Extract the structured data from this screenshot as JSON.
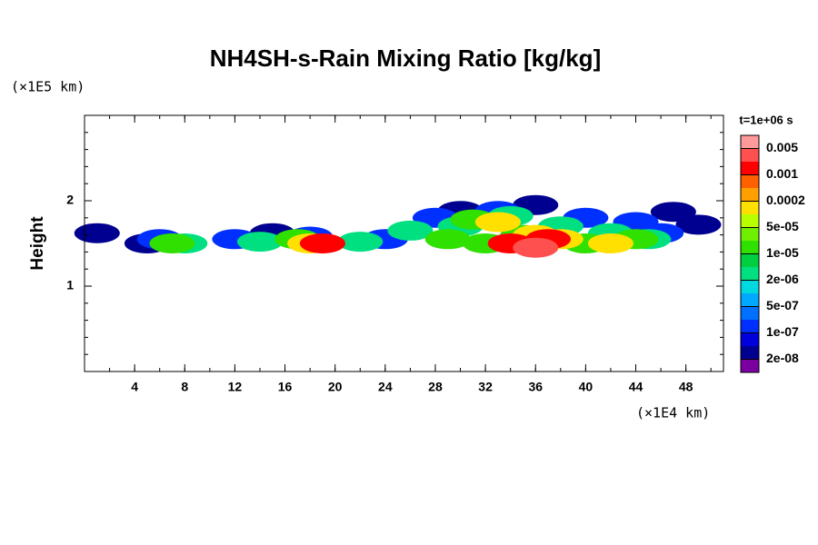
{
  "chart_data": {
    "type": "contour",
    "title": "NH4SH-s-Rain Mixing Ratio [kg/kg]",
    "y_label": "Height",
    "x_unit": "(×1E4 km)",
    "y_unit": "(×1E5 km)",
    "time_label": "t=1e+06 s",
    "xlim": [
      0,
      51
    ],
    "xticks": [
      4,
      8,
      12,
      16,
      20,
      24,
      28,
      32,
      36,
      40,
      44,
      48
    ],
    "ylim": [
      0,
      3
    ],
    "yticks": [
      1,
      2
    ],
    "levels": [
      {
        "value": 2e-08,
        "label": "2e-08"
      },
      {
        "value": 1e-07,
        "label": "1e-07"
      },
      {
        "value": 5e-07,
        "label": "5e-07"
      },
      {
        "value": 2e-06,
        "label": "2e-06"
      },
      {
        "value": 1e-05,
        "label": "1e-05"
      },
      {
        "value": 5e-05,
        "label": "5e-05"
      },
      {
        "value": 0.0002,
        "label": "0.0002"
      },
      {
        "value": 0.001,
        "label": "0.001"
      },
      {
        "value": 0.005,
        "label": "0.005"
      }
    ],
    "colors": [
      "#7a00a0",
      "#000090",
      "#0000dd",
      "#0030ff",
      "#0070ff",
      "#00a8ff",
      "#00d8e0",
      "#00e080",
      "#00d040",
      "#30e000",
      "#70f000",
      "#b8ff00",
      "#ffe000",
      "#ffa000",
      "#ff6000",
      "#ff0000",
      "#ff5050",
      "#ff9a9a"
    ],
    "samples": [
      {
        "x": 1,
        "y": 1.62,
        "value": 3e-08
      },
      {
        "x": 15,
        "y": 1.62,
        "value": 3e-08
      },
      {
        "x": 49,
        "y": 1.72,
        "value": 3e-08
      },
      {
        "x": 47,
        "y": 1.87,
        "value": 3e-08
      },
      {
        "x": 30,
        "y": 1.88,
        "value": 3e-08
      },
      {
        "x": 36,
        "y": 1.95,
        "value": 3e-08
      },
      {
        "x": 5,
        "y": 1.5,
        "value": 3e-08
      },
      {
        "x": 6,
        "y": 1.55,
        "value": 2e-07
      },
      {
        "x": 12,
        "y": 1.55,
        "value": 2e-07
      },
      {
        "x": 18,
        "y": 1.58,
        "value": 2e-07
      },
      {
        "x": 24,
        "y": 1.55,
        "value": 2e-07
      },
      {
        "x": 28,
        "y": 1.8,
        "value": 2e-07
      },
      {
        "x": 33,
        "y": 1.88,
        "value": 2e-07
      },
      {
        "x": 40,
        "y": 1.8,
        "value": 2e-07
      },
      {
        "x": 44,
        "y": 1.75,
        "value": 2e-07
      },
      {
        "x": 46,
        "y": 1.62,
        "value": 2e-07
      },
      {
        "x": 8,
        "y": 1.5,
        "value": 3e-06
      },
      {
        "x": 14,
        "y": 1.52,
        "value": 3e-06
      },
      {
        "x": 22,
        "y": 1.52,
        "value": 3e-06
      },
      {
        "x": 26,
        "y": 1.65,
        "value": 3e-06
      },
      {
        "x": 30,
        "y": 1.7,
        "value": 3e-06
      },
      {
        "x": 34,
        "y": 1.82,
        "value": 3e-06
      },
      {
        "x": 38,
        "y": 1.7,
        "value": 3e-06
      },
      {
        "x": 42,
        "y": 1.62,
        "value": 3e-06
      },
      {
        "x": 45,
        "y": 1.55,
        "value": 3e-06
      },
      {
        "x": 7,
        "y": 1.5,
        "value": 2e-05
      },
      {
        "x": 17,
        "y": 1.55,
        "value": 2e-05
      },
      {
        "x": 29,
        "y": 1.55,
        "value": 2e-05
      },
      {
        "x": 32,
        "y": 1.5,
        "value": 2e-05
      },
      {
        "x": 35,
        "y": 1.6,
        "value": 2e-05
      },
      {
        "x": 40,
        "y": 1.5,
        "value": 2e-05
      },
      {
        "x": 44,
        "y": 1.55,
        "value": 2e-05
      },
      {
        "x": 31,
        "y": 1.78,
        "value": 2e-05
      },
      {
        "x": 18,
        "y": 1.5,
        "value": 0.0001
      },
      {
        "x": 33,
        "y": 1.75,
        "value": 0.0001
      },
      {
        "x": 36,
        "y": 1.6,
        "value": 0.0001
      },
      {
        "x": 38,
        "y": 1.55,
        "value": 0.0001
      },
      {
        "x": 42,
        "y": 1.5,
        "value": 0.0001
      },
      {
        "x": 19,
        "y": 1.5,
        "value": 0.001
      },
      {
        "x": 34,
        "y": 1.5,
        "value": 0.001
      },
      {
        "x": 37,
        "y": 1.55,
        "value": 0.001
      },
      {
        "x": 36,
        "y": 1.45,
        "value": 0.003
      }
    ]
  }
}
